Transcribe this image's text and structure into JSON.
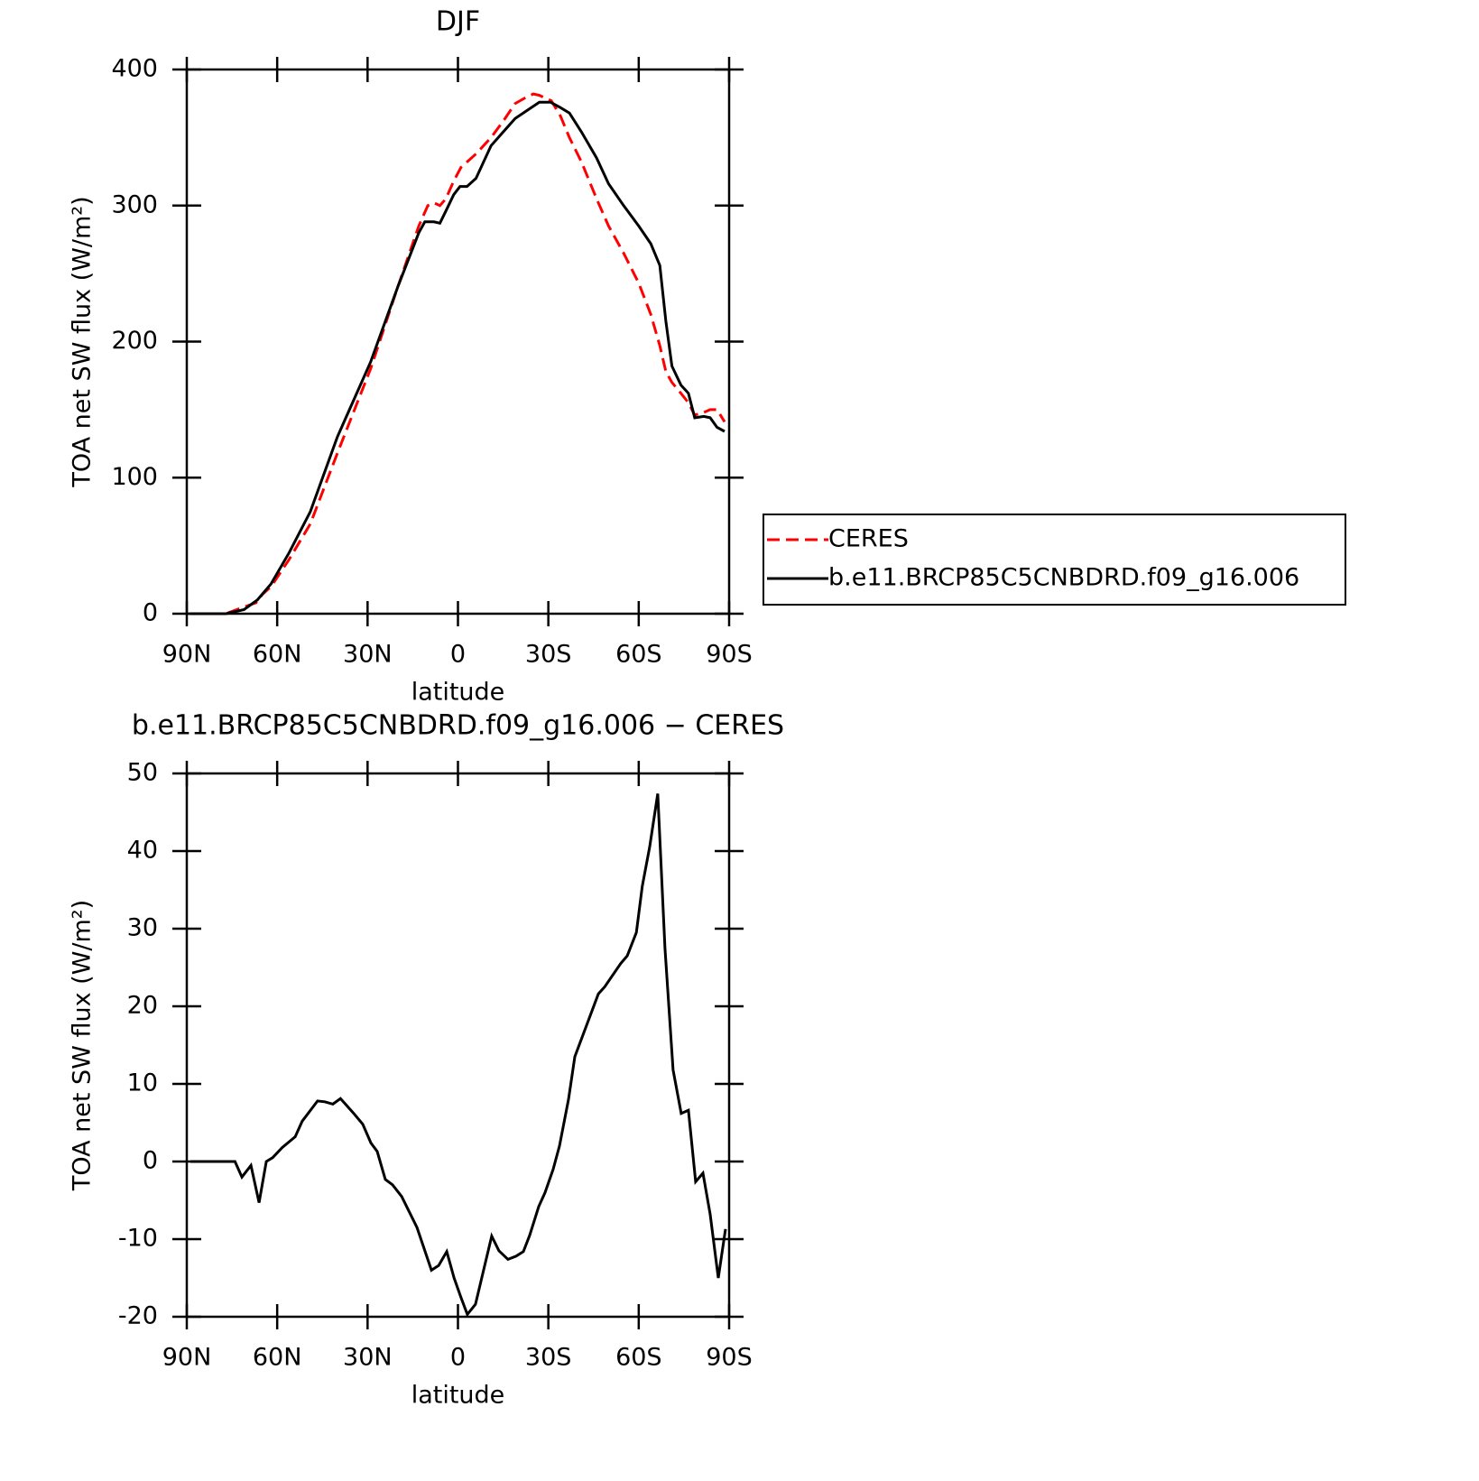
{
  "chart_data": [
    {
      "type": "line",
      "title": "DJF",
      "xlabel": "latitude",
      "ylabel": "TOA net SW flux (W/m²)",
      "xlim": [
        90,
        -90
      ],
      "ylim": [
        0,
        400
      ],
      "xticks": [
        {
          "value": 90,
          "label": "90N"
        },
        {
          "value": 60,
          "label": "60N"
        },
        {
          "value": 30,
          "label": "30N"
        },
        0,
        {
          "value": -30,
          "label": "30S"
        },
        {
          "value": -60,
          "label": "60S"
        },
        {
          "value": -90,
          "label": "90S"
        }
      ],
      "yticks": [
        0,
        100,
        200,
        300,
        400
      ],
      "legend": "right",
      "series": [
        {
          "name": "CERES",
          "color": "#ff0000",
          "style": "dashed",
          "x": [
            89,
            77,
            71,
            67,
            65,
            62,
            56,
            49,
            40,
            29,
            20,
            13,
            10,
            8,
            6,
            4,
            1.4,
            -1,
            -3,
            -6,
            -11,
            -15,
            -19,
            -23,
            -25,
            -27,
            -31,
            -34,
            -37,
            -41,
            -46,
            -50,
            -55,
            -60,
            -64,
            -67,
            -69,
            -71,
            -74,
            -76.5,
            -78.6,
            -81.6,
            -83.7,
            -86,
            -88.5
          ],
          "values": [
            0,
            0,
            5,
            8,
            14,
            20,
            40,
            66,
            118,
            180,
            240,
            285,
            300,
            302,
            300,
            305,
            318,
            328,
            332,
            338,
            350,
            362,
            375,
            380,
            382,
            381,
            377,
            366,
            350,
            332,
            305,
            285,
            265,
            243,
            220,
            197,
            178,
            170,
            162,
            155,
            146,
            148,
            150,
            150,
            141
          ]
        },
        {
          "name": "b.e11.BRCP85C5CNBDRD.f09_g16.006",
          "color": "#000000",
          "style": "solid",
          "x": [
            89,
            77,
            71,
            66.6,
            62,
            56,
            49,
            40,
            29,
            20,
            13,
            11,
            8,
            6,
            4,
            1.4,
            -0.7,
            -3,
            -6,
            -11,
            -15,
            -19,
            -23,
            -27,
            -30.7,
            -34,
            -37,
            -41,
            -46,
            -50,
            -55,
            -60,
            -64,
            -67,
            -69,
            -71,
            -74,
            -76.5,
            -78.6,
            -81.6,
            -83.7,
            -86,
            -88.5
          ],
          "values": [
            0,
            0,
            3,
            10,
            22,
            45,
            75,
            130,
            185,
            240,
            280,
            288,
            288,
            287,
            296,
            308,
            314,
            314,
            320,
            344,
            354,
            364,
            370,
            376,
            376,
            372,
            368,
            354,
            335,
            316,
            300,
            285,
            272,
            256,
            215,
            182,
            168,
            162,
            144,
            145,
            144,
            137,
            134
          ]
        }
      ]
    },
    {
      "type": "line",
      "title": "b.e11.BRCP85C5CNBDRD.f09_g16.006 − CERES",
      "xlabel": "latitude",
      "ylabel": "TOA net SW flux (W/m²)",
      "xlim": [
        90,
        -90
      ],
      "ylim": [
        -20,
        50
      ],
      "xticks": [
        {
          "value": 90,
          "label": "90N"
        },
        {
          "value": 60,
          "label": "60N"
        },
        {
          "value": 30,
          "label": "30N"
        },
        0,
        {
          "value": -30,
          "label": "30S"
        },
        {
          "value": -60,
          "label": "60S"
        },
        {
          "value": -90,
          "label": "90S"
        }
      ],
      "yticks": [
        -20,
        -10,
        0,
        10,
        20,
        30,
        40,
        50
      ],
      "series": [
        {
          "color": "#000000",
          "style": "solid",
          "x": [
            88.8,
            74,
            71.7,
            68.7,
            66,
            63.6,
            61.5,
            58.3,
            54,
            51.7,
            46.6,
            44.2,
            41.5,
            39,
            34.6,
            31.6,
            28.9,
            26.8,
            24.1,
            21.7,
            18.7,
            13.6,
            8.8,
            6.4,
            3.7,
            1.3,
            -1,
            -3.1,
            -5.8,
            -11.2,
            -13.6,
            -16.6,
            -19.3,
            -21.7,
            -23.8,
            -26.8,
            -28.9,
            -31.6,
            -33.7,
            -36.7,
            -38.8,
            -46.6,
            -48.7,
            -54,
            -56.2,
            -59.2,
            -61.2,
            -63.6,
            -66.3,
            -68.7,
            -71.4,
            -74.1,
            -76.5,
            -78.9,
            -81.3,
            -83.7,
            -86.4,
            -88.8
          ],
          "values": [
            0,
            0,
            -2,
            -0.5,
            -5.3,
            0,
            0.5,
            1.8,
            3.2,
            5.2,
            7.8,
            7.7,
            7.4,
            8.1,
            6.2,
            4.8,
            2.4,
            1.3,
            -2.3,
            -3,
            -4.5,
            -8.5,
            -14,
            -13.4,
            -11.6,
            -15,
            -17.5,
            -19.7,
            -18.4,
            -9.6,
            -11.5,
            -12.6,
            -12.2,
            -11.6,
            -9.5,
            -5.8,
            -4,
            -1,
            2,
            8,
            13.5,
            21.6,
            22.5,
            25.5,
            26.5,
            29.5,
            35.5,
            40.5,
            47.4,
            27.5,
            11.8,
            6.2,
            6.6,
            -2.6,
            -1.5,
            -6.8,
            -15,
            -8.7
          ]
        }
      ]
    }
  ]
}
